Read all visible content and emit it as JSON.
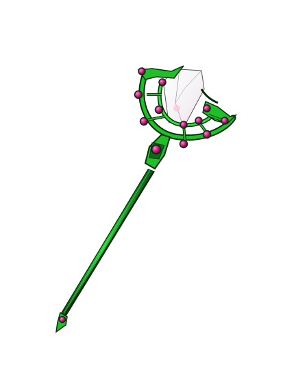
{
  "item": {
    "icon": "staff-icon",
    "colors": {
      "background": "#ffffff",
      "staff_green": "#1fbf2a",
      "staff_dark": "#0a4a12",
      "gem_magenta": "#c2187a",
      "gem_highlight": "#ff7cc7",
      "crystal": "#f4f1f4",
      "crystal_tint": "#ffd2e6",
      "outline": "#1a1a1a"
    }
  }
}
